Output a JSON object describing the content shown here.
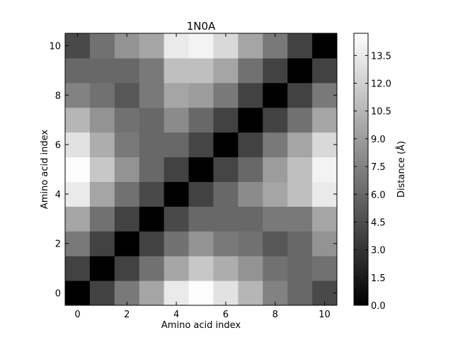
{
  "chart_data": {
    "type": "heatmap",
    "title": "1N0A",
    "xlabel": "Amino acid index",
    "ylabel": "Amino acid index",
    "colorbar_label": "Distance (Å)",
    "colormap": "gray",
    "vmin": 0.0,
    "vmax": 14.7,
    "x_ticks": [
      "0",
      "2",
      "4",
      "6",
      "8",
      "10"
    ],
    "y_ticks": [
      "0",
      "2",
      "4",
      "6",
      "8",
      "10"
    ],
    "colorbar_ticks": [
      "0.0",
      "1.5",
      "3.0",
      "4.5",
      "6.0",
      "7.5",
      "9.0",
      "10.5",
      "12.0",
      "13.5"
    ],
    "x_range": [
      -0.5,
      10.5
    ],
    "y_range": [
      -0.5,
      10.5
    ],
    "rows_from_index_0": [
      [
        0.0,
        3.8,
        7.0,
        9.5,
        13.5,
        14.5,
        13.0,
        10.5,
        7.5,
        6.0,
        4.2
      ],
      [
        3.8,
        0.0,
        3.8,
        6.5,
        9.5,
        11.5,
        10.0,
        8.5,
        6.5,
        6.0,
        6.5
      ],
      [
        7.0,
        3.8,
        0.0,
        3.8,
        6.5,
        8.5,
        7.0,
        6.5,
        5.0,
        6.0,
        8.5
      ],
      [
        9.5,
        6.5,
        3.8,
        0.0,
        4.2,
        6.0,
        6.0,
        6.0,
        7.0,
        7.0,
        9.5
      ],
      [
        13.5,
        9.5,
        6.5,
        4.2,
        0.0,
        3.8,
        6.0,
        8.0,
        9.5,
        11.0,
        13.5
      ],
      [
        14.5,
        11.5,
        8.5,
        6.0,
        3.8,
        0.0,
        4.0,
        6.0,
        9.0,
        11.0,
        14.0
      ],
      [
        13.0,
        10.0,
        7.0,
        6.0,
        6.0,
        4.0,
        0.0,
        3.8,
        7.0,
        9.5,
        12.5
      ],
      [
        10.5,
        8.5,
        6.5,
        6.0,
        8.0,
        6.0,
        3.8,
        0.0,
        3.8,
        6.5,
        9.5
      ],
      [
        7.5,
        6.5,
        5.0,
        7.0,
        9.5,
        9.0,
        7.0,
        3.8,
        0.0,
        3.8,
        7.0
      ],
      [
        6.0,
        6.0,
        6.0,
        7.0,
        11.0,
        11.0,
        9.5,
        6.5,
        3.8,
        0.0,
        3.8
      ],
      [
        4.2,
        6.5,
        8.5,
        9.5,
        13.5,
        14.0,
        12.5,
        9.5,
        7.0,
        3.8,
        0.0
      ]
    ]
  }
}
